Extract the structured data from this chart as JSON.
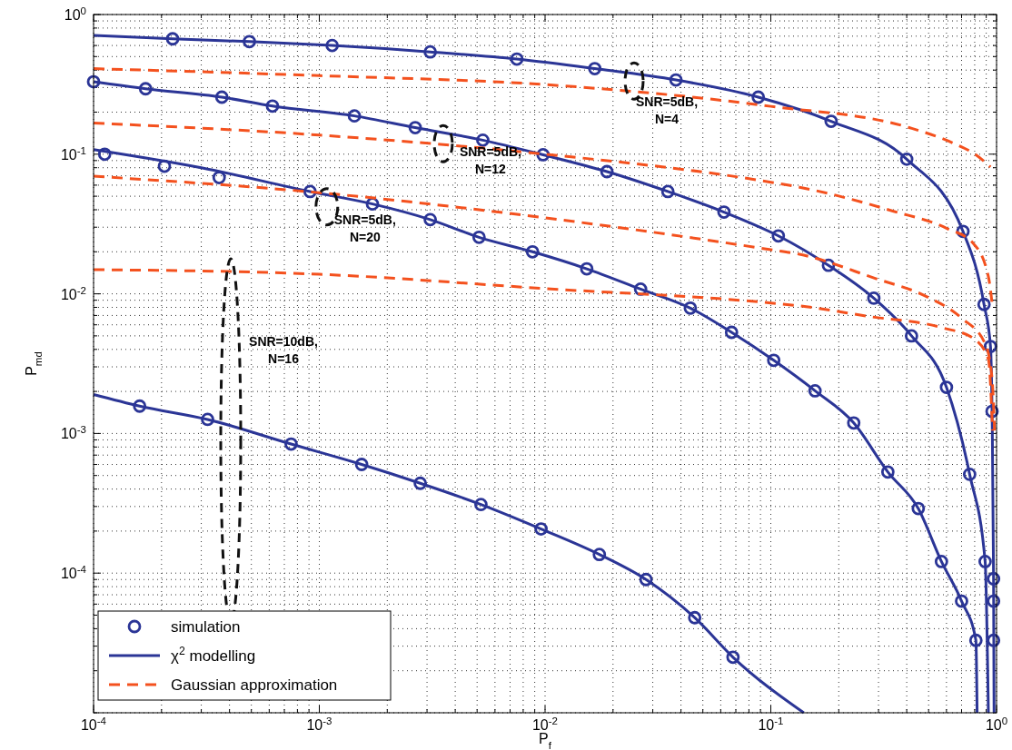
{
  "chart_data": {
    "type": "line",
    "xlabel": "P$_{f}$",
    "ylabel": "P$_{md}$",
    "log": "xy",
    "xlim": [
      0.0001,
      1
    ],
    "ylim": [
      1e-05,
      1
    ],
    "xticks": [
      {
        "value": 0.0001,
        "label": "10$^{-4}$"
      },
      {
        "value": 0.001,
        "label": "10$^{-3}$"
      },
      {
        "value": 0.01,
        "label": "10$^{-2}$"
      },
      {
        "value": 0.1,
        "label": "10$^{-1}$"
      },
      {
        "value": 1,
        "label": "10$^{0}$"
      }
    ],
    "yticks": [
      {
        "value": 0.0001,
        "label": "10$^{-4}$"
      },
      {
        "value": 0.001,
        "label": "10$^{-3}$"
      },
      {
        "value": 0.01,
        "label": "10$^{-2}$"
      },
      {
        "value": 0.1,
        "label": "10$^{-1}$"
      },
      {
        "value": 1,
        "label": "10$^{0}$"
      }
    ],
    "grid": true,
    "legend": "bottom left",
    "series": [
      {
        "type": "scatter",
        "name": "simulation",
        "color": "#2b3596",
        "marker": "circle",
        "x": [
          0.000224,
          0.00049,
          0.00114,
          0.0031,
          0.0075,
          0.0166,
          0.038,
          0.088,
          0.185,
          0.4,
          0.71,
          0.88,
          0.94,
          0.955,
          0.97,
          0.97,
          0.97
        ],
        "values": [
          0.67,
          0.64,
          0.6,
          0.54,
          0.48,
          0.41,
          0.34,
          0.256,
          0.172,
          0.092,
          0.028,
          0.0084,
          0.0042,
          0.00144,
          9.1e-05,
          6.3e-05,
          3.3e-05
        ]
      },
      {
        "type": "line",
        "name": "χ$^{2}$ modelling",
        "color": "#2b3596",
        "line_style": "solid",
        "x": [
          0.0001,
          0.000224,
          0.00049,
          0.00114,
          0.0031,
          0.0075,
          0.0166,
          0.038,
          0.088,
          0.185,
          0.4,
          0.71,
          0.88,
          0.94,
          0.955,
          0.97,
          0.975
        ],
        "values": [
          0.71,
          0.67,
          0.64,
          0.6,
          0.54,
          0.48,
          0.41,
          0.34,
          0.256,
          0.172,
          0.092,
          0.028,
          0.0084,
          0.0042,
          0.00144,
          9.1e-05,
          1e-05
        ]
      },
      {
        "type": "line",
        "name": "Gaussian approximation",
        "color": "#f4511e",
        "line_style": "dashed",
        "x": [
          0.0001,
          0.001,
          0.01,
          0.1,
          0.41,
          0.65,
          0.81,
          0.94
        ],
        "values": [
          0.41,
          0.365,
          0.315,
          0.22,
          0.155,
          0.119,
          0.099,
          0.081
        ]
      },
      {
        "type": "scatter",
        "color": "#2b3596",
        "marker": "circle",
        "x": [
          0.0001,
          0.00017,
          0.00037,
          0.00062,
          0.00143,
          0.00266,
          0.0053,
          0.0098,
          0.0188,
          0.035,
          0.062,
          0.108,
          0.18,
          0.286,
          0.42,
          0.6,
          0.76,
          0.89
        ],
        "values": [
          0.33,
          0.294,
          0.256,
          0.221,
          0.188,
          0.155,
          0.126,
          0.099,
          0.075,
          0.054,
          0.0385,
          0.026,
          0.016,
          0.0093,
          0.005,
          0.00214,
          0.00051,
          0.000121
        ]
      },
      {
        "type": "line",
        "color": "#2b3596",
        "line_style": "solid",
        "x": [
          0.0001,
          0.00017,
          0.00037,
          0.00062,
          0.00143,
          0.00266,
          0.0053,
          0.0098,
          0.0188,
          0.035,
          0.062,
          0.108,
          0.18,
          0.286,
          0.42,
          0.6,
          0.76,
          0.89,
          0.92
        ],
        "values": [
          0.33,
          0.294,
          0.256,
          0.221,
          0.188,
          0.155,
          0.126,
          0.099,
          0.075,
          0.054,
          0.0385,
          0.026,
          0.016,
          0.0093,
          0.005,
          0.00214,
          0.00051,
          0.000121,
          1e-05
        ]
      },
      {
        "type": "line",
        "color": "#f4511e",
        "line_style": "dashed",
        "x": [
          0.0001,
          0.001,
          0.01,
          0.1,
          0.134,
          0.35,
          0.6,
          0.79,
          0.92,
          0.955
        ],
        "values": [
          0.167,
          0.137,
          0.1,
          0.063,
          0.058,
          0.039,
          0.0295,
          0.0229,
          0.0133,
          0.0086
        ]
      },
      {
        "type": "scatter",
        "color": "#2b3596",
        "marker": "circle",
        "x": [
          0.000112,
          0.000206,
          0.00036,
          0.00091,
          0.00172,
          0.0031,
          0.0051,
          0.0088,
          0.0153,
          0.0265,
          0.044,
          0.067,
          0.103,
          0.157,
          0.233,
          0.33,
          0.45,
          0.57,
          0.7,
          0.81
        ],
        "values": [
          0.1,
          0.082,
          0.068,
          0.054,
          0.044,
          0.034,
          0.0254,
          0.02,
          0.0151,
          0.0108,
          0.0079,
          0.0053,
          0.00334,
          0.00202,
          0.00119,
          0.00053,
          0.00029,
          0.000121,
          6.3e-05,
          3.3e-05
        ]
      },
      {
        "type": "line",
        "color": "#2b3596",
        "line_style": "solid",
        "x": [
          0.0001,
          0.0003,
          0.00091,
          0.00172,
          0.0031,
          0.0051,
          0.0088,
          0.0153,
          0.0265,
          0.044,
          0.067,
          0.103,
          0.157,
          0.233,
          0.33,
          0.45,
          0.57,
          0.7,
          0.81,
          0.82
        ],
        "values": [
          0.108,
          0.08,
          0.054,
          0.044,
          0.034,
          0.0254,
          0.02,
          0.0151,
          0.0108,
          0.0079,
          0.0053,
          0.00334,
          0.00202,
          0.00119,
          0.00053,
          0.00029,
          0.000121,
          6.3e-05,
          3.3e-05,
          1e-05
        ]
      },
      {
        "type": "line",
        "color": "#f4511e",
        "line_style": "dashed",
        "x": [
          0.0001,
          0.001,
          0.01,
          0.1,
          0.134,
          0.29,
          0.48,
          0.7,
          0.89,
          0.955,
          0.98
        ],
        "values": [
          0.0695,
          0.053,
          0.035,
          0.0207,
          0.0192,
          0.0129,
          0.0097,
          0.0067,
          0.0044,
          0.00248,
          0.00105
        ]
      },
      {
        "type": "scatter",
        "color": "#2b3596",
        "marker": "circle",
        "x": [
          0.00016,
          0.00032,
          0.00075,
          0.00154,
          0.0028,
          0.0052,
          0.0096,
          0.0174,
          0.028,
          0.046,
          0.068
        ],
        "values": [
          0.00157,
          0.00126,
          0.00084,
          0.0006,
          0.00044,
          0.00031,
          0.000207,
          0.000136,
          9e-05,
          4.8e-05,
          2.5e-05
        ]
      },
      {
        "type": "line",
        "color": "#2b3596",
        "line_style": "solid",
        "x": [
          0.0001,
          0.00016,
          0.00032,
          0.00075,
          0.00154,
          0.0028,
          0.0052,
          0.0096,
          0.0174,
          0.028,
          0.046,
          0.068,
          0.14
        ],
        "values": [
          0.0019,
          0.00157,
          0.00126,
          0.00084,
          0.0006,
          0.00044,
          0.00031,
          0.000207,
          0.000136,
          9e-05,
          4.8e-05,
          2.5e-05,
          1e-05
        ]
      },
      {
        "type": "line",
        "color": "#f4511e",
        "line_style": "dashed",
        "x": [
          0.0001,
          0.001,
          0.01,
          0.1,
          0.134,
          0.27,
          0.58,
          0.79,
          0.92,
          0.96
        ],
        "values": [
          0.0149,
          0.0138,
          0.0109,
          0.0086,
          0.0082,
          0.0069,
          0.0057,
          0.0048,
          0.0034,
          0.00105
        ]
      }
    ],
    "annotations": [
      {
        "text": "SNR=5dB,\nN=4",
        "x": 0.0248,
        "y": 0.334
      },
      {
        "text": "SNR=5dB,\nN=12",
        "x": 0.00354,
        "y": 0.119
      },
      {
        "text": "SNR=5dB,\nN=20",
        "x": 0.00108,
        "y": 0.042
      },
      "SNR=10dB,\nN=16"
    ]
  }
}
